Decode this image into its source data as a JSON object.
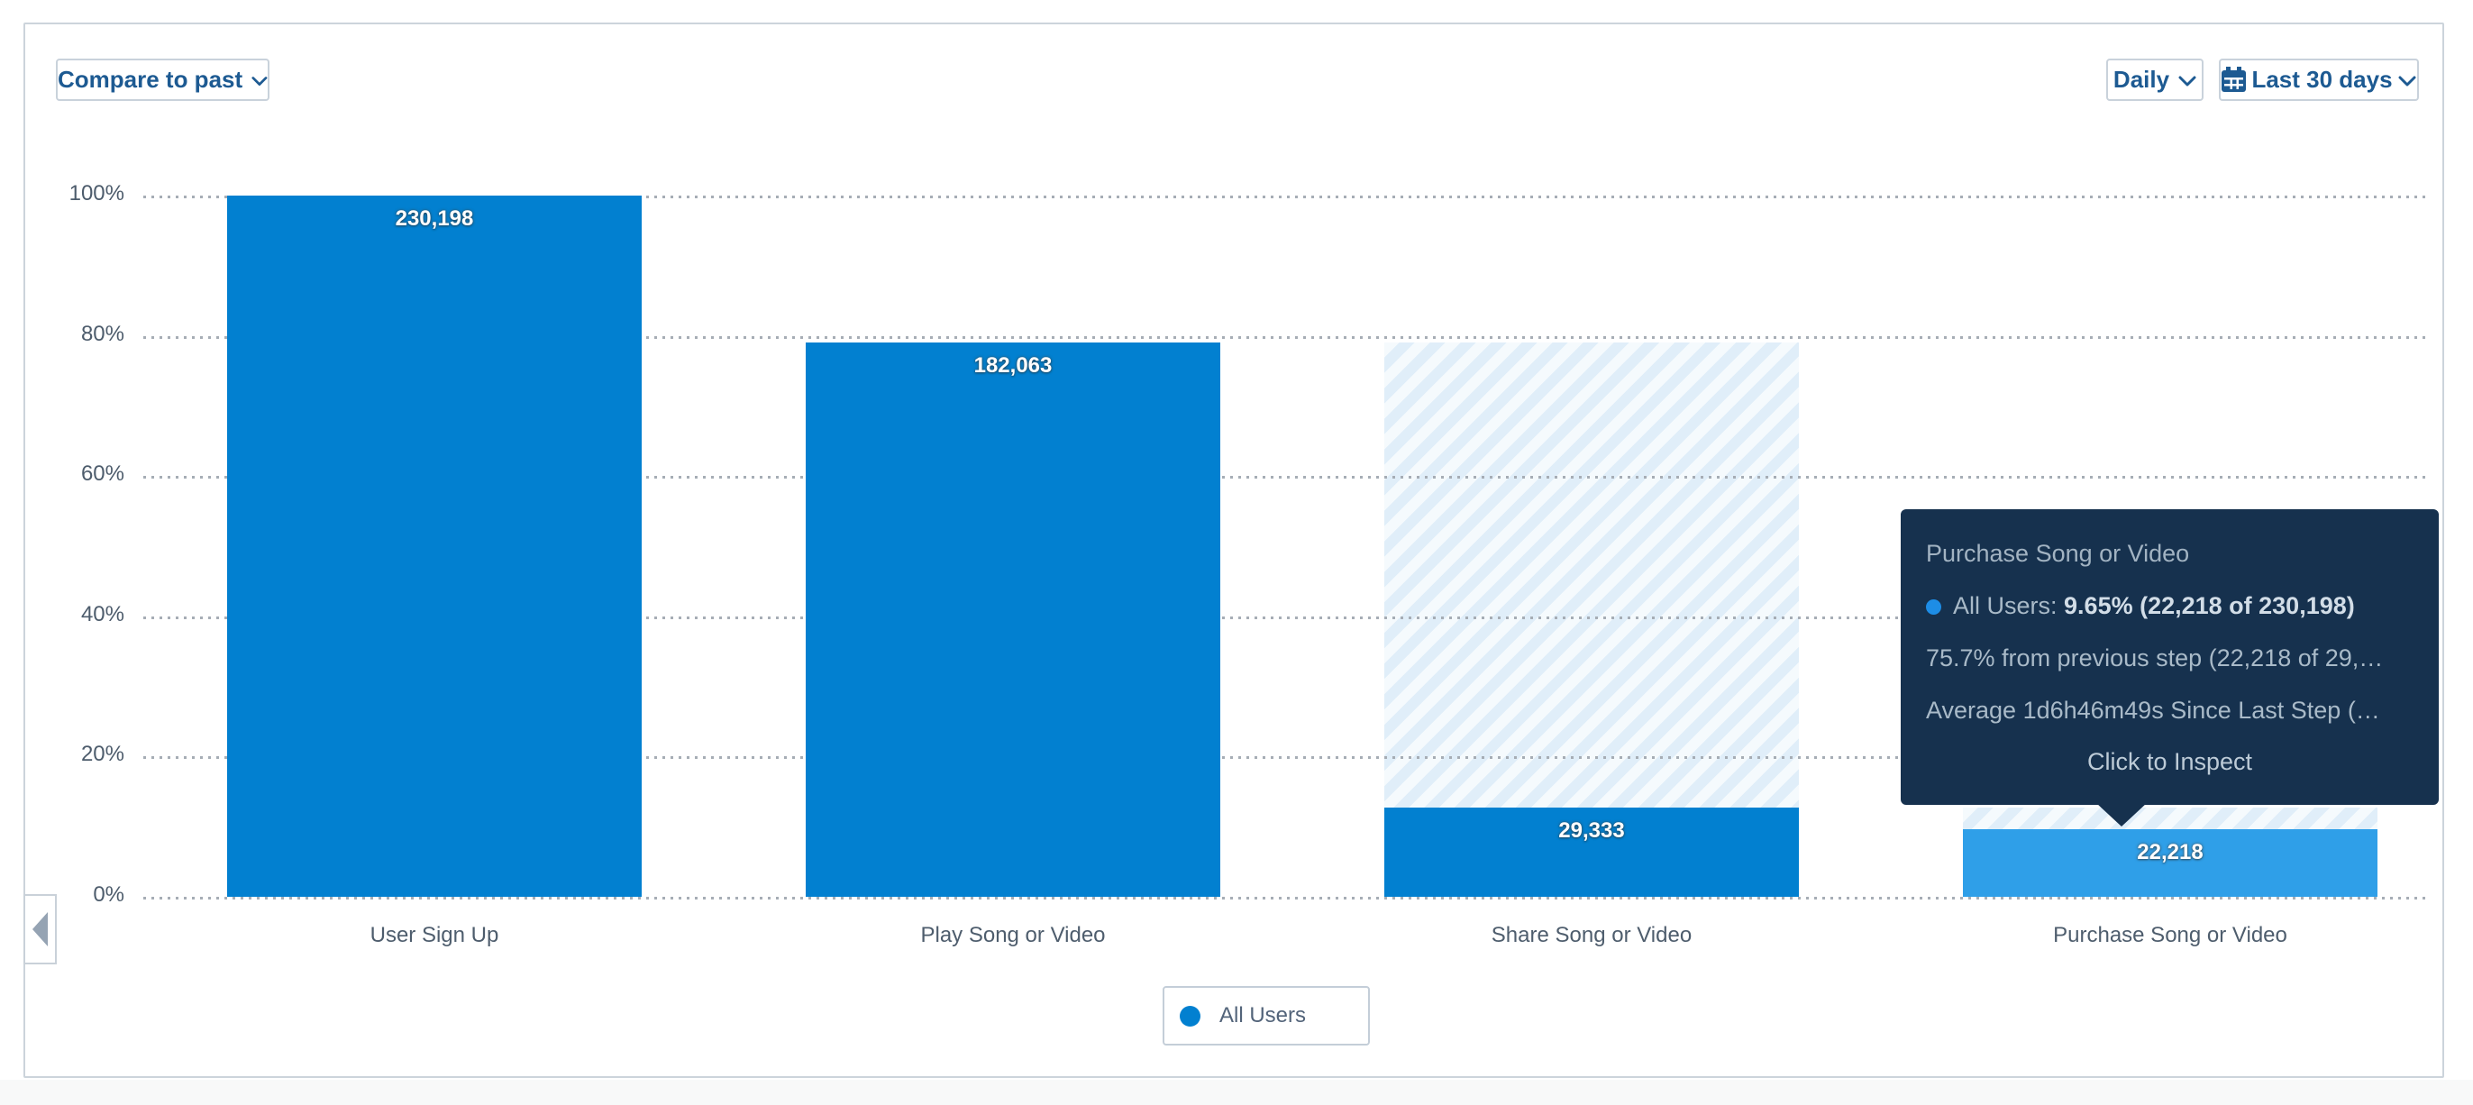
{
  "toolbar": {
    "compare_label": "Compare to past",
    "interval_label": "Daily",
    "range_label": "Last 30 days"
  },
  "chart_data": {
    "type": "bar",
    "subtype": "funnel",
    "title": "",
    "xlabel": "",
    "ylabel": "",
    "ylim": [
      0,
      100
    ],
    "y_ticks": [
      "100%",
      "80%",
      "60%",
      "40%",
      "20%",
      "0%"
    ],
    "grid": "dotted-horizontal",
    "legend_position": "bottom-center",
    "series": [
      {
        "name": "All Users",
        "color": "#0280D0"
      }
    ],
    "categories": [
      "User Sign Up",
      "Play Song or Video",
      "Share Song or Video",
      "Purchase Song or Video"
    ],
    "steps": [
      {
        "label": "User Sign Up",
        "value": 230198,
        "value_label": "230,198",
        "pct": 100,
        "hatch": false,
        "highlighted": false
      },
      {
        "label": "Play Song or Video",
        "value": 182063,
        "value_label": "182,063",
        "pct": 79.09,
        "hatch": false,
        "highlighted": false
      },
      {
        "label": "Share Song or Video",
        "value": 29333,
        "value_label": "29,333",
        "pct": 12.74,
        "hatch": true,
        "hatch_from_pct": 79.09,
        "highlighted": false
      },
      {
        "label": "Purchase Song or Video",
        "value": 22218,
        "value_label": "22,218",
        "pct": 9.65,
        "hatch": true,
        "hatch_from_pct": 12.74,
        "highlighted": true
      }
    ]
  },
  "tooltip": {
    "title": "Purchase Song or Video",
    "series_label": "All Users:",
    "series_value": "9.65% (22,218 of 230,198)",
    "line_prev": "75.7% from previous step (22,218 of 29,…",
    "line_avg": "Average 1d6h46m49s Since Last Step (…",
    "cta": "Click to Inspect"
  },
  "legend": {
    "items": [
      {
        "label": "All Users",
        "color": "#0280D0"
      }
    ]
  },
  "colors": {
    "bar": "#0280D0",
    "bar_highlight": "#2F9FE8",
    "hatch_stripe": "#E0EEF9",
    "hatch_bg": "#F5FAFD",
    "tooltip_bg": "#16314E",
    "tooltip_dot": "#1D8DE6",
    "accent_text": "#1D5A92",
    "axis_text": "#4D5C6C",
    "panel_border": "#CCD4DB"
  }
}
